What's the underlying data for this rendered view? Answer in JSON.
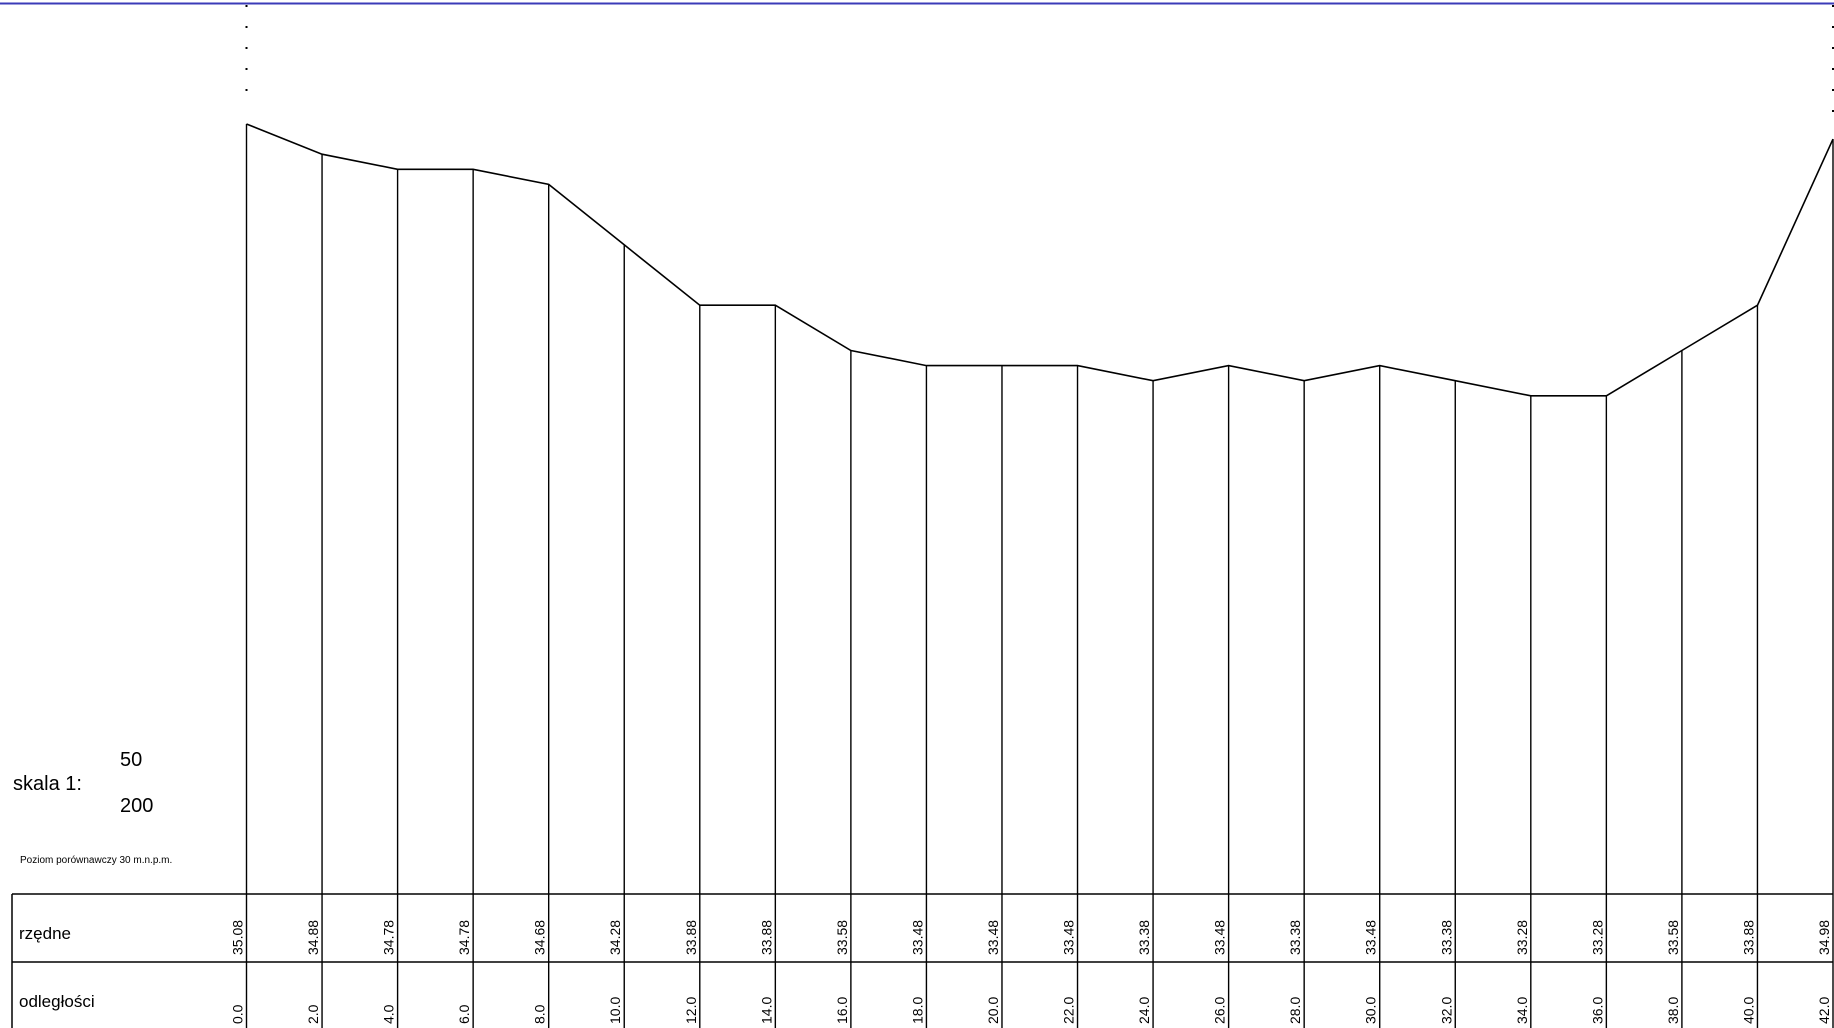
{
  "frame_line_color": "#3b3bb8",
  "scale": {
    "label": "skala 1:",
    "vertical": "50",
    "horizontal": "200"
  },
  "datum_note": "Poziom porównawczy 30 m.n.p.m.",
  "table": {
    "row_elevations_label": "rzędne",
    "row_distances_label": "odległości"
  },
  "chart_data": {
    "type": "line",
    "title": "",
    "xlabel": "odległości",
    "ylabel": "rzędne",
    "x": [
      0.0,
      2.0,
      4.0,
      6.0,
      8.0,
      10.0,
      12.0,
      14.0,
      16.0,
      18.0,
      20.0,
      22.0,
      24.0,
      26.0,
      28.0,
      30.0,
      32.0,
      34.0,
      36.0,
      38.0,
      40.0,
      42.0
    ],
    "x_labels": [
      "0.0",
      "2.0",
      "4.0",
      "6.0",
      "8.0",
      "10.0",
      "12.0",
      "14.0",
      "16.0",
      "18.0",
      "20.0",
      "22.0",
      "24.0",
      "26.0",
      "28.0",
      "30.0",
      "32.0",
      "34.0",
      "36.0",
      "38.0",
      "40.0",
      "42.0"
    ],
    "y": [
      35.08,
      34.88,
      34.78,
      34.78,
      34.68,
      34.28,
      33.88,
      33.88,
      33.58,
      33.48,
      33.48,
      33.48,
      33.38,
      33.48,
      33.38,
      33.48,
      33.38,
      33.28,
      33.28,
      33.58,
      33.88,
      34.98
    ],
    "y_labels": [
      "35.08",
      "34.88",
      "34.78",
      "34.78",
      "34.68",
      "34.28",
      "33.88",
      "33.88",
      "33.58",
      "33.48",
      "33.48",
      "33.48",
      "33.38",
      "33.48",
      "33.38",
      "33.48",
      "33.38",
      "33.28",
      "33.28",
      "33.58",
      "33.88",
      "34.98"
    ],
    "datum": 30,
    "xlim": [
      0,
      42
    ],
    "grid": false
  }
}
